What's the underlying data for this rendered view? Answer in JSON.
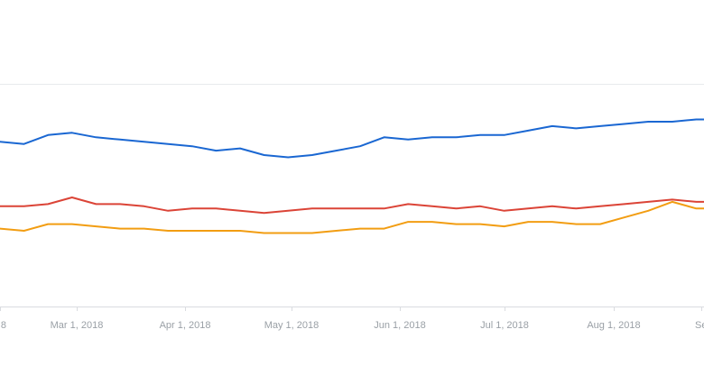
{
  "chart_data": {
    "type": "line",
    "title": "",
    "xlabel": "",
    "ylabel": "",
    "grid": true,
    "ylim": [
      0,
      100
    ],
    "x_tick_labels": [
      "8",
      "Mar 1, 2018",
      "Apr 1, 2018",
      "May 1, 2018",
      "Jun 1, 2018",
      "Jul 1, 2018",
      "Aug 1, 2018",
      "Se"
    ],
    "x": [
      "2018-02-04",
      "2018-02-11",
      "2018-02-18",
      "2018-02-25",
      "2018-03-04",
      "2018-03-11",
      "2018-03-18",
      "2018-03-25",
      "2018-04-01",
      "2018-04-08",
      "2018-04-15",
      "2018-04-22",
      "2018-04-29",
      "2018-05-06",
      "2018-05-13",
      "2018-05-20",
      "2018-05-27",
      "2018-06-03",
      "2018-06-10",
      "2018-06-17",
      "2018-06-24",
      "2018-07-01",
      "2018-07-08",
      "2018-07-15",
      "2018-07-22",
      "2018-07-29",
      "2018-08-05",
      "2018-08-12",
      "2018-08-19",
      "2018-08-26",
      "2018-09-02"
    ],
    "series": [
      {
        "color": "#1a67d2",
        "values": [
          74,
          73,
          77,
          78,
          76,
          75,
          74,
          73,
          72,
          70,
          71,
          68,
          67,
          68,
          70,
          72,
          76,
          75,
          76,
          76,
          77,
          77,
          79,
          81,
          80,
          81,
          82,
          83,
          83,
          84,
          84
        ]
      },
      {
        "color": "#db4437",
        "values": [
          45,
          45,
          46,
          49,
          46,
          46,
          45,
          43,
          44,
          44,
          43,
          42,
          43,
          44,
          44,
          44,
          44,
          46,
          45,
          44,
          45,
          43,
          44,
          45,
          44,
          45,
          46,
          47,
          48,
          47,
          47
        ]
      },
      {
        "color": "#f29d12",
        "values": [
          35,
          34,
          37,
          37,
          36,
          35,
          35,
          34,
          34,
          34,
          34,
          33,
          33,
          33,
          34,
          35,
          35,
          38,
          38,
          37,
          37,
          36,
          38,
          38,
          37,
          37,
          40,
          43,
          47,
          44,
          44
        ]
      }
    ]
  }
}
